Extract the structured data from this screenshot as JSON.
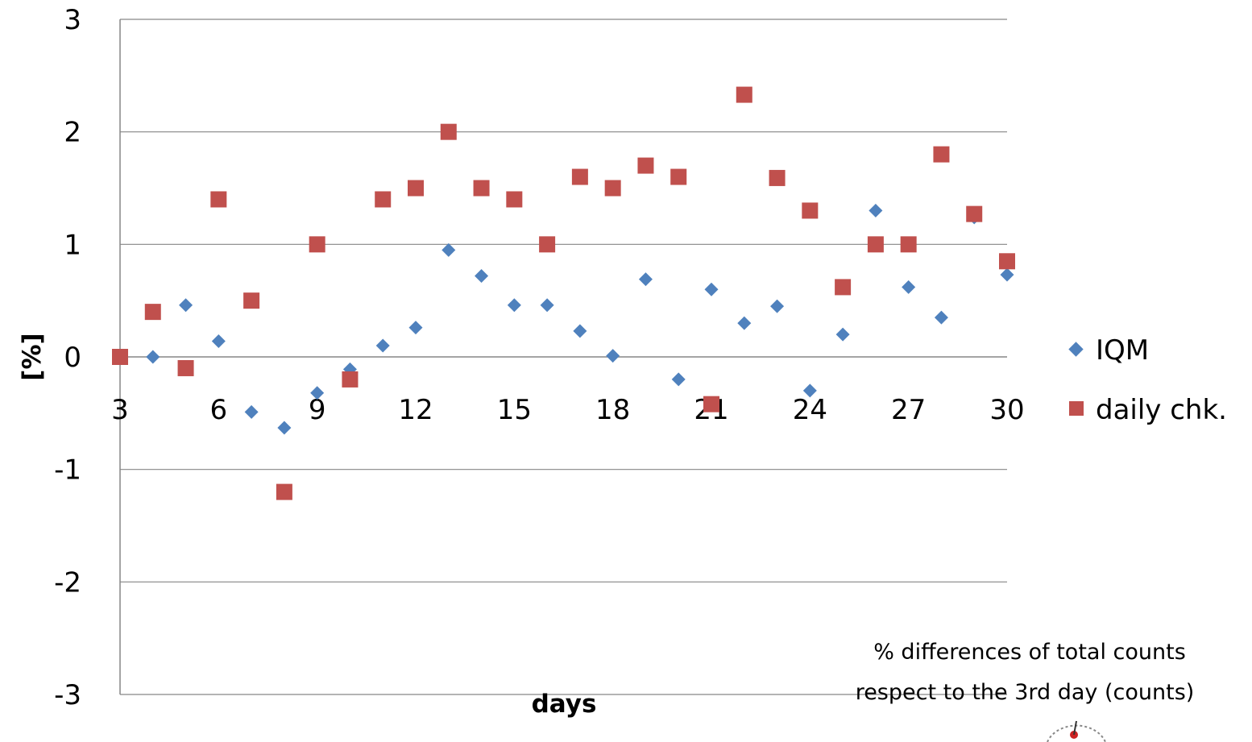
{
  "chart_data": {
    "type": "scatter",
    "xlabel": "days",
    "ylabel": "[%]",
    "xlim": [
      3,
      30
    ],
    "ylim": [
      -3,
      3
    ],
    "x_ticks": [
      "3",
      "6",
      "9",
      "12",
      "15",
      "18",
      "21",
      "24",
      "27",
      "30"
    ],
    "y_ticks": [
      "3",
      "2",
      "1",
      "0",
      "-1",
      "-2",
      "-3"
    ],
    "grid": "horizontal",
    "legend_position": "right",
    "series": [
      {
        "name": "IQM",
        "marker": "diamond",
        "color": "#4f81bd",
        "x": [
          4,
          5,
          6,
          7,
          8,
          9,
          10,
          11,
          12,
          13,
          14,
          15,
          16,
          17,
          18,
          19,
          20,
          21,
          22,
          23,
          24,
          25,
          26,
          27,
          28,
          29,
          30
        ],
        "values": [
          0.0,
          0.46,
          0.14,
          -0.49,
          -0.63,
          -0.32,
          -0.11,
          0.1,
          0.26,
          0.95,
          0.72,
          0.46,
          0.46,
          0.23,
          0.01,
          0.69,
          -0.2,
          0.6,
          0.3,
          0.45,
          -0.3,
          0.2,
          1.3,
          0.62,
          0.35,
          1.24,
          0.73
        ]
      },
      {
        "name": "daily chk.",
        "marker": "square",
        "color": "#c0504d",
        "x": [
          3,
          4,
          5,
          6,
          7,
          8,
          9,
          10,
          11,
          12,
          13,
          14,
          15,
          16,
          17,
          18,
          19,
          20,
          21,
          22,
          23,
          24,
          25,
          26,
          27,
          28,
          29,
          30
        ],
        "values": [
          0.0,
          0.4,
          -0.1,
          1.4,
          0.5,
          -1.2,
          1.0,
          -0.2,
          1.4,
          1.5,
          2.0,
          1.5,
          1.4,
          1.0,
          1.6,
          1.5,
          1.7,
          1.6,
          -0.42,
          2.33,
          1.59,
          1.3,
          0.62,
          1.0,
          1.0,
          1.8,
          1.27,
          0.85
        ]
      }
    ],
    "annotation": [
      "% differences of total counts",
      "respect to the 3rd day (counts)"
    ]
  }
}
